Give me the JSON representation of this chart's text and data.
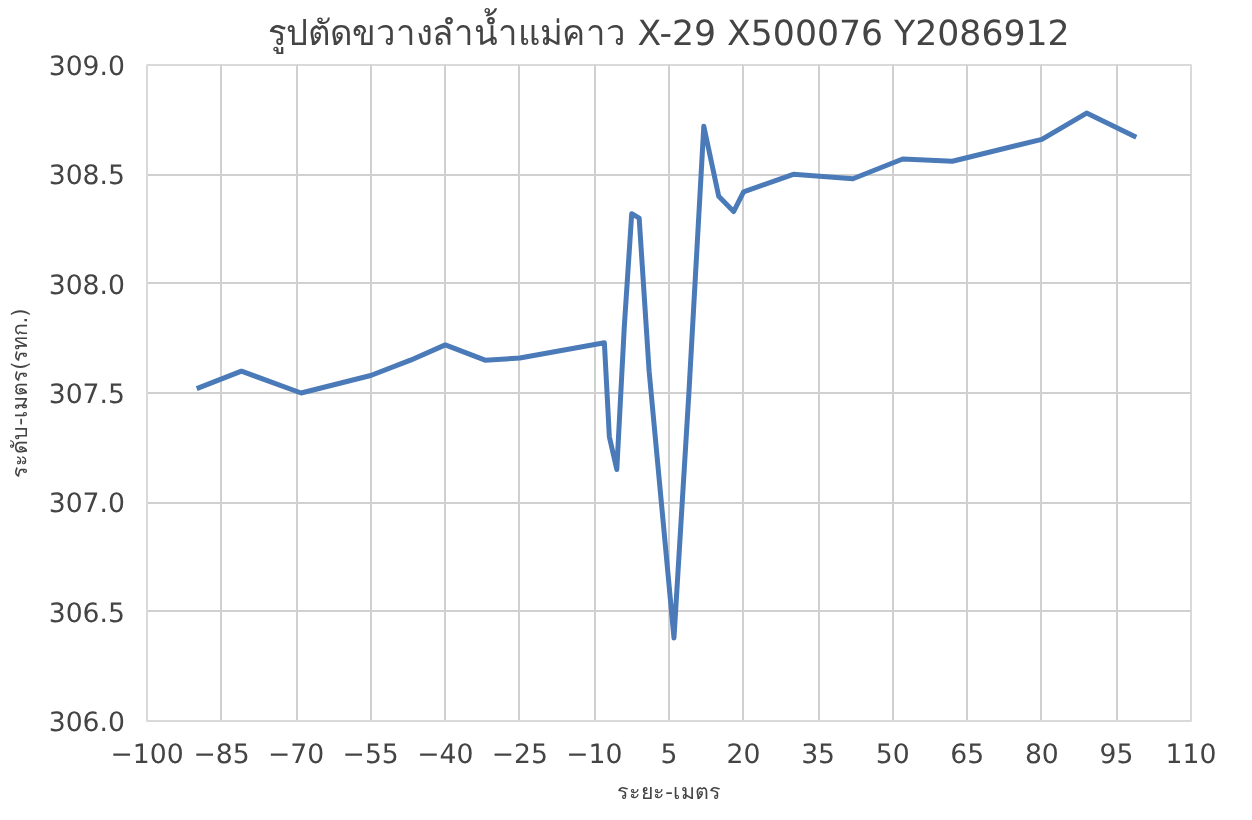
{
  "chart_data": {
    "type": "line",
    "title": "รูปตัดขวางลำน้ำแม่คาว X-29 X500076 Y2086912",
    "xlabel": "ระยะ-เมตร",
    "ylabel": "ระดับ-เมตร(รทก.)",
    "x": [
      -90,
      -81,
      -69,
      -55,
      -47,
      -40,
      -32,
      -25,
      -8,
      -7,
      -5.5,
      -4,
      -2.5,
      -1,
      1,
      6,
      9,
      12,
      15,
      18,
      20,
      30,
      42,
      52,
      62,
      80,
      89,
      99
    ],
    "series": [
      {
        "color": "#4a7ab8",
        "values": [
          307.52,
          307.6,
          307.5,
          307.58,
          307.65,
          307.72,
          307.65,
          307.66,
          307.73,
          307.3,
          307.15,
          307.8,
          308.32,
          308.3,
          307.6,
          306.38,
          307.5,
          308.72,
          308.4,
          308.33,
          308.42,
          308.5,
          308.48,
          308.57,
          308.56,
          308.66,
          308.78,
          308.67
        ]
      }
    ],
    "xlim": [
      -100,
      110
    ],
    "xticks": [
      -100,
      -85,
      -70,
      -55,
      -40,
      -25,
      -10,
      5,
      20,
      35,
      50,
      65,
      80,
      95,
      110
    ],
    "ylim": [
      306.0,
      309.0
    ],
    "yticks": [
      {
        "value": 306.0,
        "label": "306.0"
      },
      {
        "value": 306.5,
        "label": "306.5"
      },
      {
        "value": 307.0,
        "label": "307.0"
      },
      {
        "value": 307.5,
        "label": "307.5"
      },
      {
        "value": 308.0,
        "label": "308.0"
      },
      {
        "value": 308.5,
        "label": "308.5"
      },
      {
        "value": 309.0,
        "label": "309.0"
      }
    ],
    "grid": true,
    "marker": "none",
    "line_style": "solid"
  }
}
